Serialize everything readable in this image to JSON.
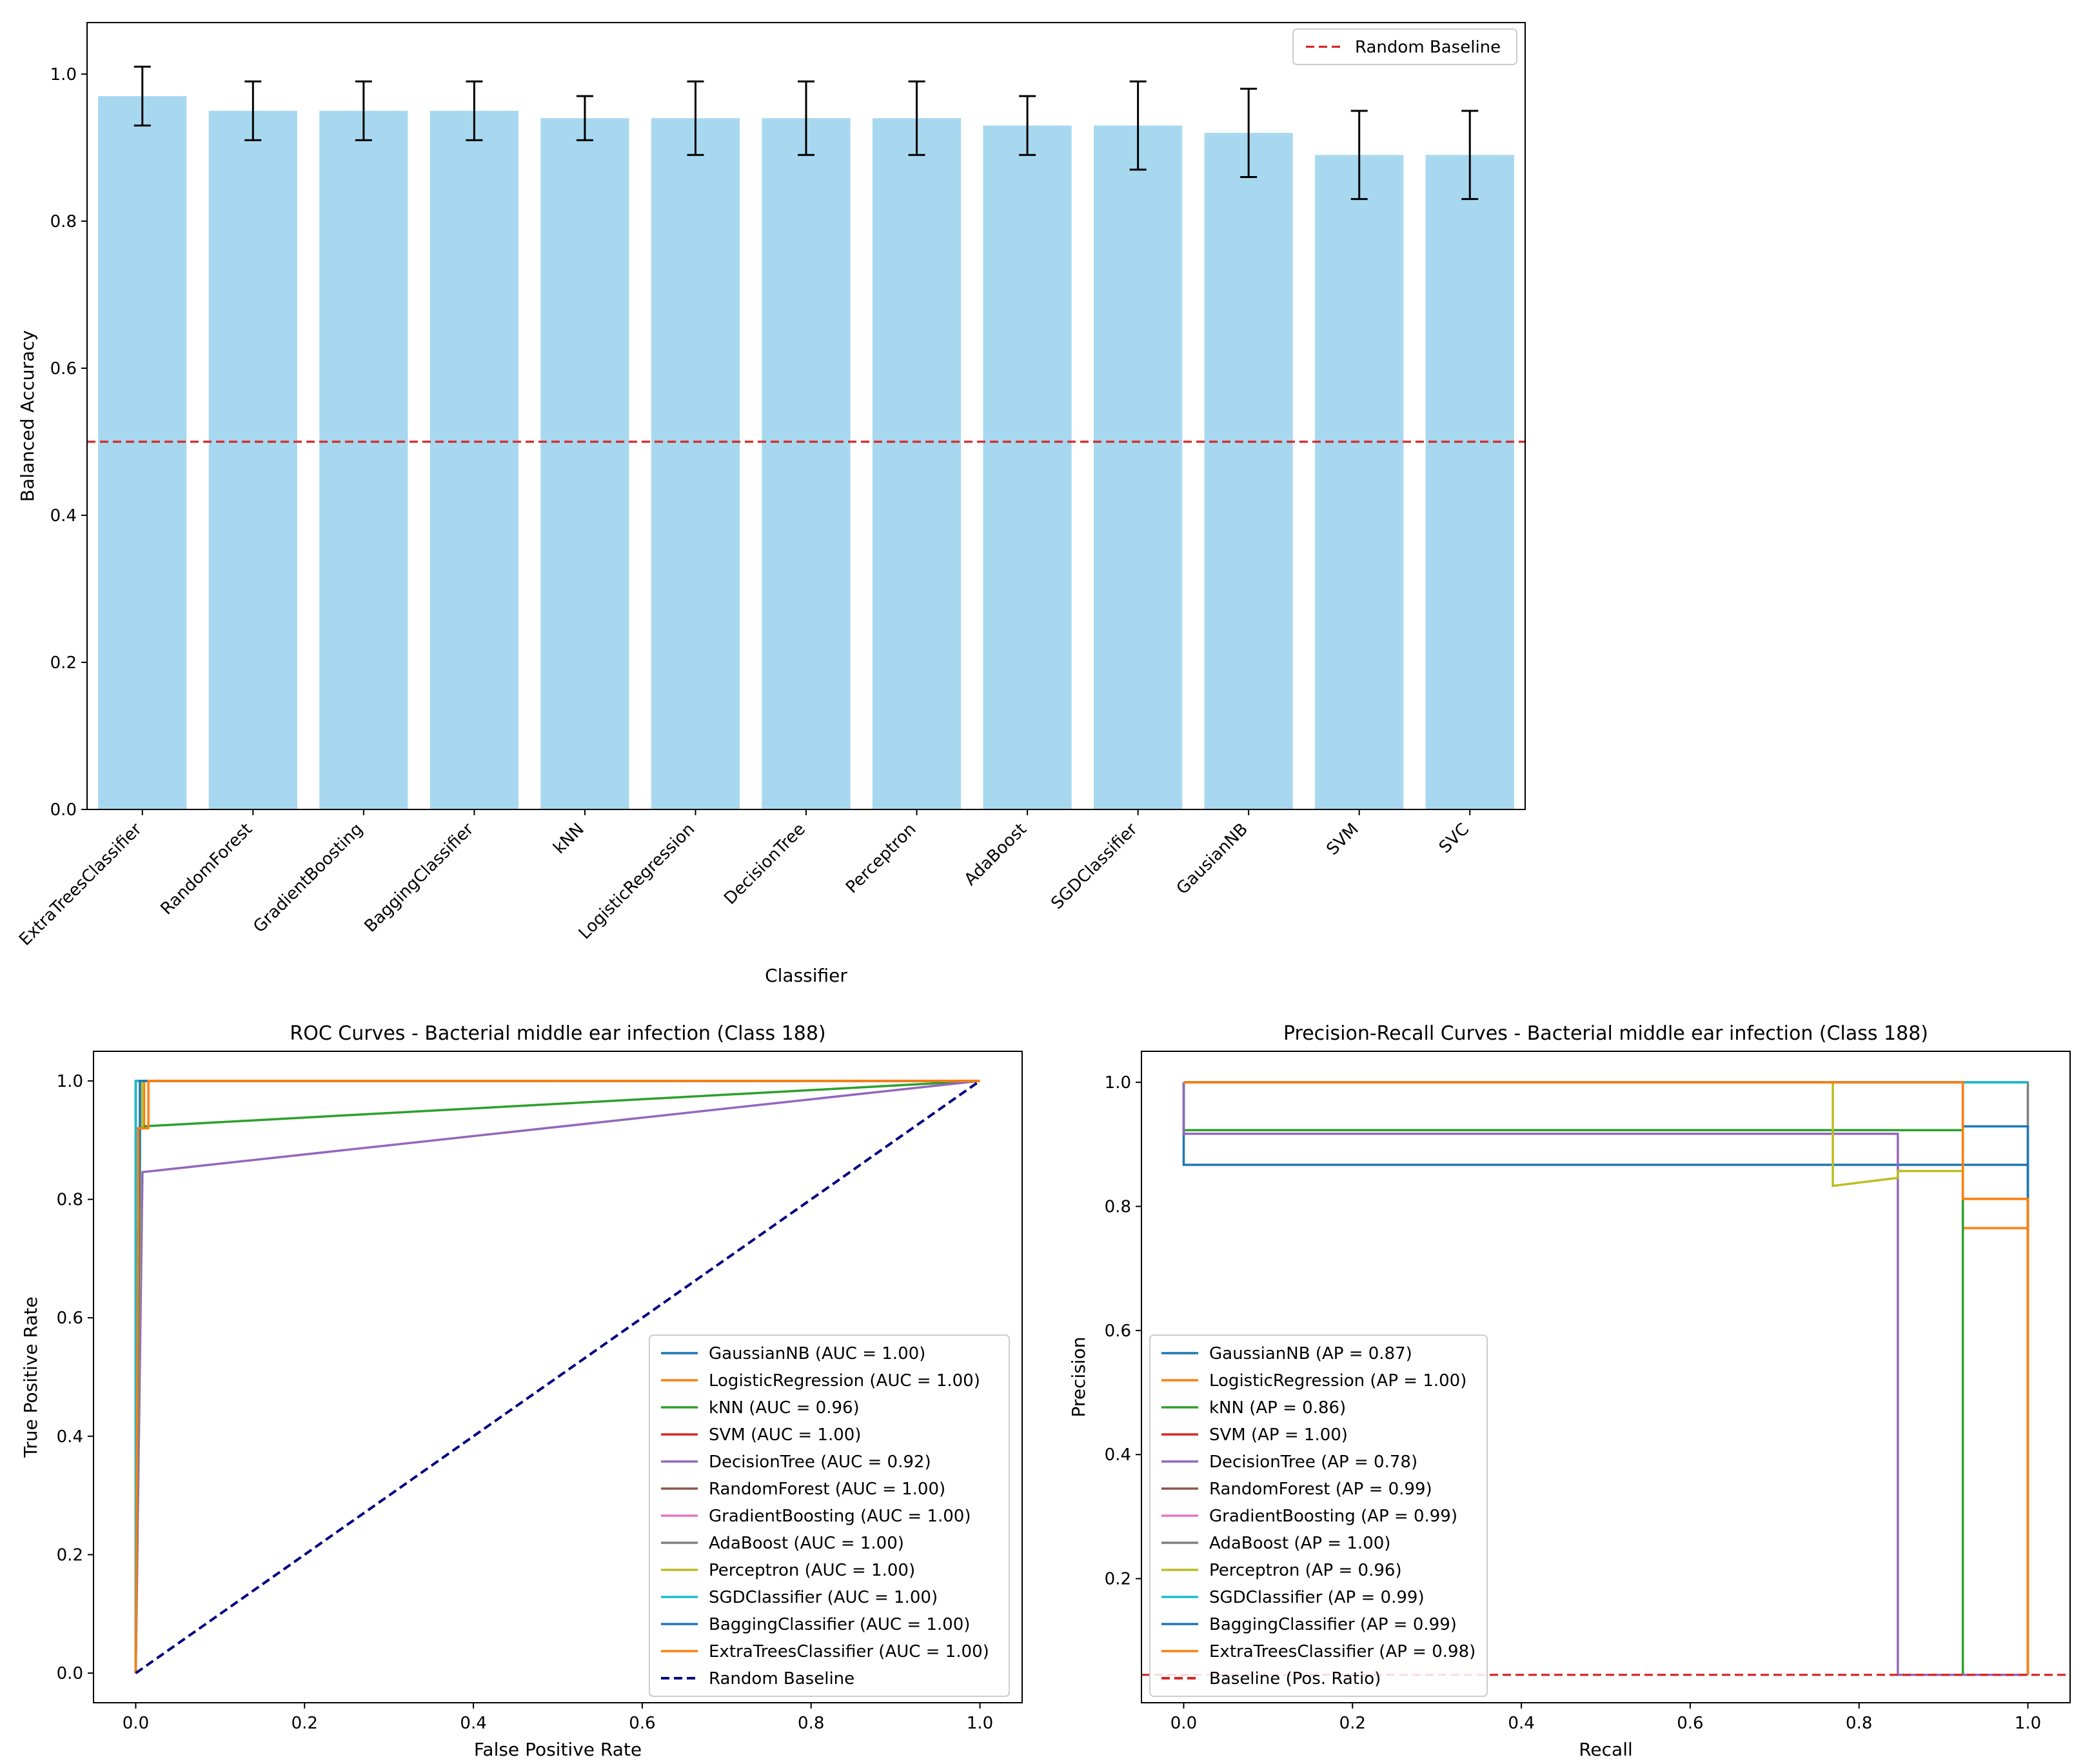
{
  "chart_data": [
    {
      "type": "bar",
      "title": "",
      "xlabel": "Classifier",
      "ylabel": "Balanced Accuracy",
      "ylim": [
        0,
        1.07
      ],
      "yticks": [
        0.0,
        0.2,
        0.4,
        0.6,
        0.8,
        1.0
      ],
      "categories": [
        "ExtraTreesClassifier",
        "RandomForest",
        "GradientBoosting",
        "BaggingClassifier",
        "kNN",
        "LogisticRegression",
        "DecisionTree",
        "Perceptron",
        "AdaBoost",
        "SGDClassifier",
        "GausianNB",
        "SVM",
        "SVC"
      ],
      "values": [
        0.97,
        0.95,
        0.95,
        0.95,
        0.94,
        0.94,
        0.94,
        0.94,
        0.93,
        0.93,
        0.92,
        0.89,
        0.89
      ],
      "errors": [
        0.04,
        0.04,
        0.04,
        0.04,
        0.03,
        0.05,
        0.05,
        0.05,
        0.04,
        0.06,
        0.06,
        0.06,
        0.06
      ],
      "bar_color": "#a8d8ef",
      "baseline": {
        "label": "Random Baseline",
        "value": 0.5,
        "color": "#d62728"
      },
      "legend_position": "top-right"
    },
    {
      "type": "line",
      "title": "ROC Curves - Bacterial middle ear infection (Class 188)",
      "xlabel": "False Positive Rate",
      "ylabel": "True Positive Rate",
      "xlim": [
        -0.05,
        1.05
      ],
      "ylim": [
        -0.05,
        1.05
      ],
      "xticks": [
        0.0,
        0.2,
        0.4,
        0.6,
        0.8,
        1.0
      ],
      "yticks": [
        0.0,
        0.2,
        0.4,
        0.6,
        0.8,
        1.0
      ],
      "legend_position": "lower-right",
      "series": [
        {
          "name": "GaussianNB (AUC = 1.00)",
          "color": "#1f77b4",
          "x": [
            0,
            0,
            0.005,
            0.005,
            1
          ],
          "y": [
            0,
            0.92,
            0.92,
            1,
            1
          ]
        },
        {
          "name": "LogisticRegression (AUC = 1.00)",
          "color": "#ff7f0e",
          "x": [
            0,
            0,
            0.01,
            0.01,
            1
          ],
          "y": [
            0,
            0.92,
            0.92,
            1,
            1
          ]
        },
        {
          "name": "kNN (AUC = 0.96)",
          "color": "#2ca02c",
          "x": [
            0,
            0.005,
            0.005,
            1
          ],
          "y": [
            0,
            0.77,
            0.923,
            1
          ]
        },
        {
          "name": "SVM (AUC = 1.00)",
          "color": "#d62728",
          "x": [
            0,
            0,
            1
          ],
          "y": [
            0,
            1,
            1
          ]
        },
        {
          "name": "DecisionTree (AUC = 0.92)",
          "color": "#9467bd",
          "x": [
            0,
            0.008,
            1
          ],
          "y": [
            0,
            0.846,
            1
          ]
        },
        {
          "name": "RandomForest (AUC = 1.00)",
          "color": "#8c564b",
          "x": [
            0,
            0,
            1
          ],
          "y": [
            0,
            1,
            1
          ]
        },
        {
          "name": "GradientBoosting (AUC = 1.00)",
          "color": "#e377c2",
          "x": [
            0,
            0,
            1
          ],
          "y": [
            0,
            1,
            1
          ]
        },
        {
          "name": "AdaBoost (AUC = 1.00)",
          "color": "#7f7f7f",
          "x": [
            0,
            0,
            1
          ],
          "y": [
            0,
            1,
            1
          ]
        },
        {
          "name": "Perceptron (AUC = 1.00)",
          "color": "#bcbd22",
          "x": [
            0,
            0.005,
            0.005,
            0.008,
            0.008,
            1
          ],
          "y": [
            0,
            0.77,
            0.92,
            0.92,
            1,
            1
          ]
        },
        {
          "name": "SGDClassifier (AUC = 1.00)",
          "color": "#17becf",
          "x": [
            0,
            0,
            1
          ],
          "y": [
            0,
            1,
            1
          ]
        },
        {
          "name": "BaggingClassifier (AUC = 1.00)",
          "color": "#1f77b4",
          "x": [
            0,
            0.005,
            0.005,
            1
          ],
          "y": [
            0,
            0.92,
            1,
            1
          ]
        },
        {
          "name": "ExtraTreesClassifier (AUC = 1.00)",
          "color": "#ff7f0e",
          "x": [
            0,
            0.003,
            0.003,
            0.015,
            0.015,
            1
          ],
          "y": [
            0,
            0.77,
            0.92,
            0.92,
            1,
            1
          ]
        },
        {
          "name": "Random Baseline",
          "color": "#000080",
          "dashed": true,
          "x": [
            0,
            1
          ],
          "y": [
            0,
            1
          ]
        }
      ]
    },
    {
      "type": "line",
      "title": "Precision-Recall Curves - Bacterial middle ear infection (Class 188)",
      "xlabel": "Recall",
      "ylabel": "Precision",
      "xlim": [
        -0.05,
        1.05
      ],
      "ylim": [
        0.0,
        1.05
      ],
      "xticks": [
        0.0,
        0.2,
        0.4,
        0.6,
        0.8,
        1.0
      ],
      "yticks": [
        0.2,
        0.4,
        0.6,
        0.8,
        1.0
      ],
      "legend_position": "lower-left",
      "series": [
        {
          "name": "GaussianNB (AP = 0.87)",
          "color": "#1f77b4",
          "x": [
            0,
            0,
            1,
            1
          ],
          "y": [
            1,
            0.867,
            0.867,
            0.045
          ]
        },
        {
          "name": "LogisticRegression (AP = 1.00)",
          "color": "#ff7f0e",
          "x": [
            0,
            0,
            0.923,
            0.923,
            1,
            1
          ],
          "y": [
            1,
            1,
            1,
            0.765,
            0.765,
            0.045
          ]
        },
        {
          "name": "kNN (AP = 0.86)",
          "color": "#2ca02c",
          "x": [
            0,
            0,
            0.923,
            0.923
          ],
          "y": [
            1,
            0.923,
            0.923,
            0.045
          ]
        },
        {
          "name": "SVM (AP = 1.00)",
          "color": "#d62728",
          "x": [
            0,
            1
          ],
          "y": [
            1,
            1
          ]
        },
        {
          "name": "DecisionTree (AP = 0.78)",
          "color": "#9467bd",
          "x": [
            0,
            0,
            0.846,
            0.846,
            1
          ],
          "y": [
            1,
            0.917,
            0.917,
            0.045,
            0.045
          ]
        },
        {
          "name": "RandomForest (AP = 0.99)",
          "color": "#8c564b",
          "x": [
            0,
            1
          ],
          "y": [
            1,
            1
          ]
        },
        {
          "name": "GradientBoosting (AP = 0.99)",
          "color": "#e377c2",
          "x": [
            0,
            1
          ],
          "y": [
            1,
            1
          ]
        },
        {
          "name": "AdaBoost (AP = 1.00)",
          "color": "#7f7f7f",
          "x": [
            0,
            1,
            1
          ],
          "y": [
            1,
            1,
            0.045
          ]
        },
        {
          "name": "Perceptron (AP = 0.96)",
          "color": "#bcbd22",
          "x": [
            0,
            0.769,
            0.769,
            0.846,
            0.846,
            0.923,
            0.923,
            1,
            1
          ],
          "y": [
            1,
            1,
            0.833,
            0.846,
            0.857,
            0.857,
            0.812,
            0.812,
            0.045
          ]
        },
        {
          "name": "SGDClassifier (AP = 0.99)",
          "color": "#17becf",
          "x": [
            0,
            1
          ],
          "y": [
            1,
            1
          ]
        },
        {
          "name": "BaggingClassifier (AP = 0.99)",
          "color": "#1f77b4",
          "x": [
            0,
            0.923,
            0.923,
            1,
            1
          ],
          "y": [
            1,
            1,
            0.929,
            0.929,
            0.045
          ]
        },
        {
          "name": "ExtraTreesClassifier (AP = 0.98)",
          "color": "#ff7f0e",
          "x": [
            0,
            0.923,
            0.923,
            1,
            1
          ],
          "y": [
            1,
            1,
            0.812,
            0.812,
            0.045
          ]
        },
        {
          "name": "Baseline (Pos. Ratio)",
          "color": "#d62728",
          "dashed": true,
          "baseline_value": 0.045
        }
      ]
    }
  ]
}
